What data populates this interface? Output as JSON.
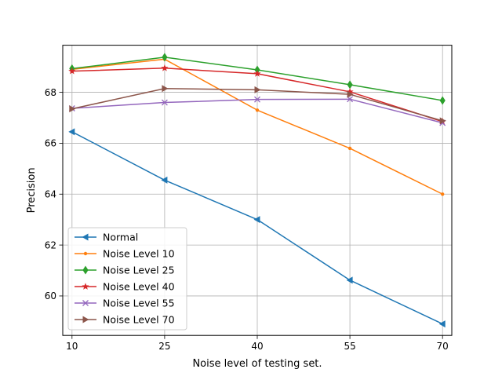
{
  "chart_data": {
    "type": "line",
    "title": "",
    "xlabel": "Noise level of testing set.",
    "ylabel": "Precision",
    "x": [
      10,
      25,
      40,
      55,
      70
    ],
    "xticks": [
      10,
      25,
      40,
      55,
      70
    ],
    "yticks": [
      60,
      62,
      64,
      66,
      68
    ],
    "xlim": [
      8.5,
      71.5
    ],
    "ylim": [
      58.45,
      69.85
    ],
    "grid": true,
    "legend_position": "lower-left",
    "series": [
      {
        "name": "Normal",
        "color": "#1f77b4",
        "marker": "triangle-left",
        "values": [
          66.45,
          64.55,
          63.0,
          60.62,
          58.9
        ]
      },
      {
        "name": "Noise Level 10",
        "color": "#ff7f0e",
        "marker": "point",
        "values": [
          68.9,
          69.3,
          67.3,
          65.8,
          64.0
        ]
      },
      {
        "name": "Noise Level 25",
        "color": "#2ca02c",
        "marker": "diamond",
        "values": [
          68.93,
          69.38,
          68.88,
          68.3,
          67.68
        ]
      },
      {
        "name": "Noise Level 40",
        "color": "#d62728",
        "marker": "star",
        "values": [
          68.83,
          68.95,
          68.73,
          68.02,
          66.85
        ]
      },
      {
        "name": "Noise Level 55",
        "color": "#9467bd",
        "marker": "x",
        "values": [
          67.37,
          67.6,
          67.72,
          67.73,
          66.8
        ]
      },
      {
        "name": "Noise Level 70",
        "color": "#8c564b",
        "marker": "triangle-right",
        "values": [
          67.35,
          68.15,
          68.1,
          67.92,
          66.88
        ]
      }
    ]
  }
}
